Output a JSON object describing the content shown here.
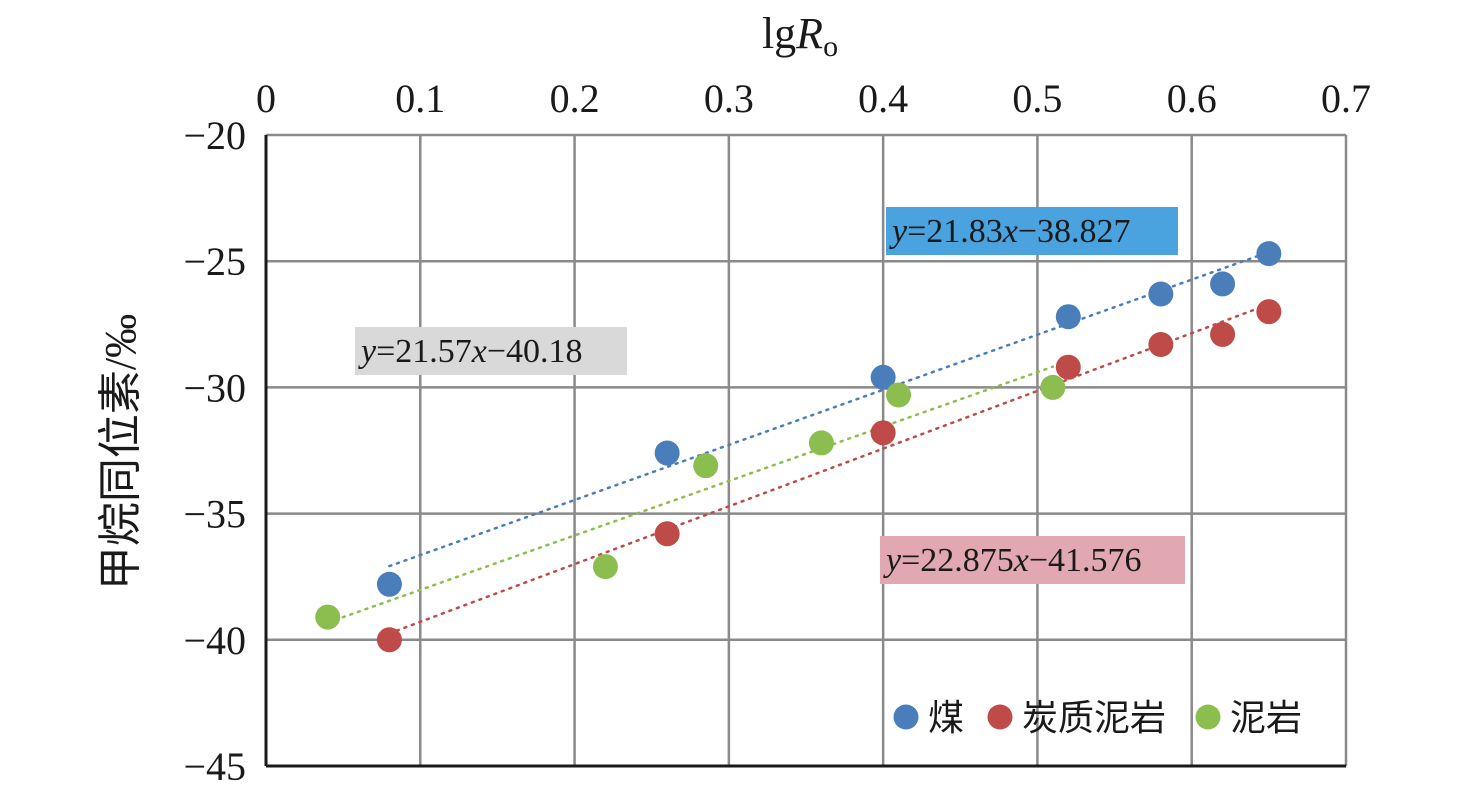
{
  "chart_data": {
    "type": "scatter",
    "title": "",
    "xlabel_main": "lg",
    "xlabel_italic": "R",
    "xlabel_sub": "o",
    "ylabel": "甲烷同位素/‰",
    "xlim": [
      0,
      0.7
    ],
    "ylim": [
      -45,
      -20
    ],
    "x_ticks": [
      "0",
      "0.1",
      "0.2",
      "0.3",
      "0.4",
      "0.5",
      "0.6",
      "0.7"
    ],
    "y_ticks": [
      "−20",
      "−25",
      "−30",
      "−35",
      "−40",
      "−45"
    ],
    "x_axis_position": "top",
    "grid": true,
    "legend_position": "bottom-right",
    "series": [
      {
        "name": "煤",
        "color": "#4a7ebb",
        "x": [
          0.08,
          0.26,
          0.4,
          0.52,
          0.58,
          0.62,
          0.65
        ],
        "y": [
          -37.8,
          -32.6,
          -29.6,
          -27.2,
          -26.3,
          -25.9,
          -24.7
        ],
        "trendline": {
          "slope": 21.83,
          "intercept": -38.827,
          "x_range": [
            0.08,
            0.65
          ]
        },
        "equation": {
          "y": "y",
          "eq": "=21.83",
          "x": "x",
          "rest": "−38.827",
          "box_color": "#4aa3df"
        }
      },
      {
        "name": "炭质泥岩",
        "color": "#be4b48",
        "x": [
          0.08,
          0.26,
          0.4,
          0.52,
          0.58,
          0.62,
          0.65
        ],
        "y": [
          -40.0,
          -35.8,
          -31.8,
          -29.2,
          -28.3,
          -27.9,
          -27.0
        ],
        "trendline": {
          "slope": 22.875,
          "intercept": -41.576,
          "x_range": [
            0.08,
            0.65
          ]
        },
        "equation": {
          "y": "y",
          "eq": "=22.875",
          "x": "x",
          "rest": "−41.576",
          "box_color": "#e2a8b2"
        }
      },
      {
        "name": "泥岩",
        "color": "#8cbd4f",
        "x": [
          0.04,
          0.22,
          0.285,
          0.36,
          0.41,
          0.51
        ],
        "y": [
          -39.1,
          -37.1,
          -33.1,
          -32.2,
          -30.3,
          -30.0
        ],
        "trendline": {
          "slope": 21.57,
          "intercept": -40.18,
          "x_range": [
            0.04,
            0.51
          ]
        },
        "equation": {
          "y": "y",
          "eq": "=21.57",
          "x": "x",
          "rest": "−40.18",
          "box_color": "#d9d9d9"
        }
      }
    ]
  }
}
